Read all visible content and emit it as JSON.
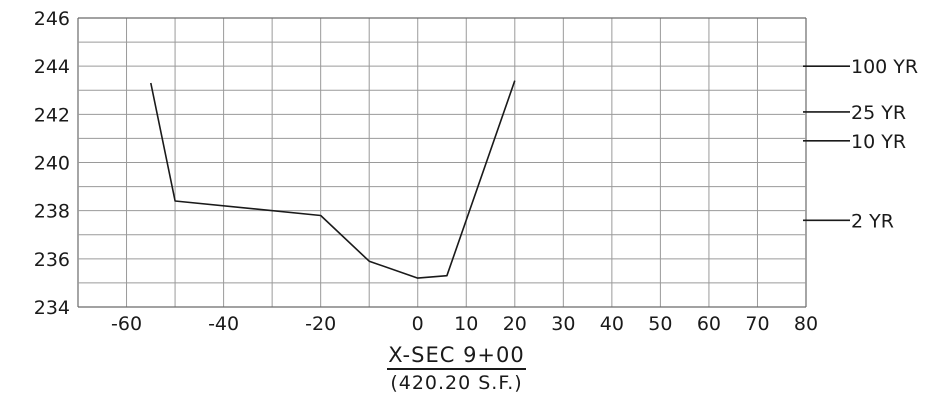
{
  "chart_data": {
    "type": "line",
    "title": "X-SEC 9+00",
    "subtitle": "(420.20 S.F.)",
    "xlim": [
      -70,
      80
    ],
    "ylim": [
      234,
      246
    ],
    "x_ticks": [
      -60,
      -40,
      -20,
      0,
      10,
      20,
      30,
      40,
      50,
      60,
      70,
      80
    ],
    "y_ticks": [
      234,
      236,
      238,
      240,
      242,
      244,
      246
    ],
    "grid": true,
    "series": [
      {
        "x": [
          -55,
          -50,
          -20,
          -10,
          0,
          6,
          20
        ],
        "y": [
          243.3,
          238.4,
          237.8,
          235.9,
          235.2,
          235.3,
          243.4
        ]
      }
    ],
    "water_levels": [
      {
        "label": "100 YR",
        "y": 244.0
      },
      {
        "label": "25 YR",
        "y": 242.1
      },
      {
        "label": "10 YR",
        "y": 240.9
      },
      {
        "label": "2 YR",
        "y": 237.6
      }
    ]
  }
}
